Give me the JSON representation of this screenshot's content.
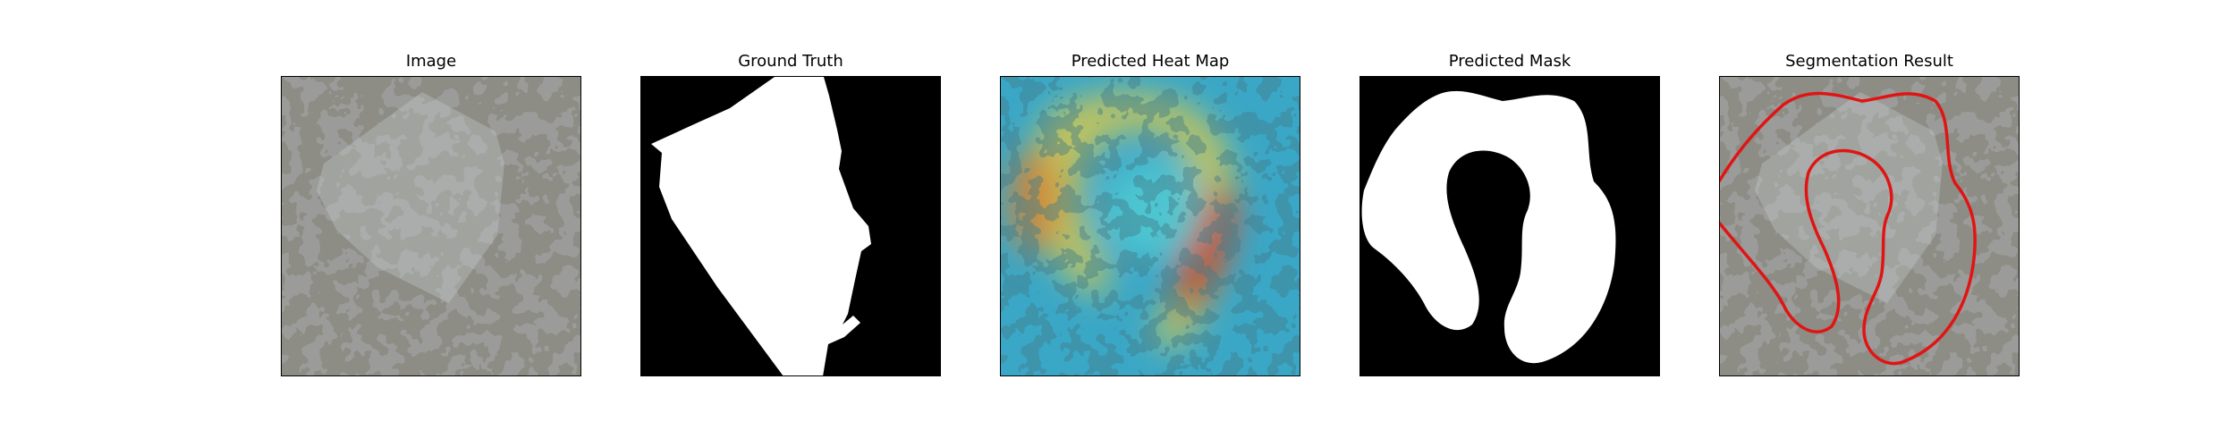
{
  "panels": [
    {
      "title": "Image"
    },
    {
      "title": "Ground Truth"
    },
    {
      "title": "Predicted Heat Map"
    },
    {
      "title": "Predicted Mask"
    },
    {
      "title": "Segmentation Result"
    }
  ],
  "colors": {
    "background": "#ffffff",
    "mask_fg": "#ffffff",
    "mask_bg": "#000000",
    "contour": "#e11414",
    "texture_dark": "#2b2b2b",
    "texture_light": "#8a8a84"
  }
}
